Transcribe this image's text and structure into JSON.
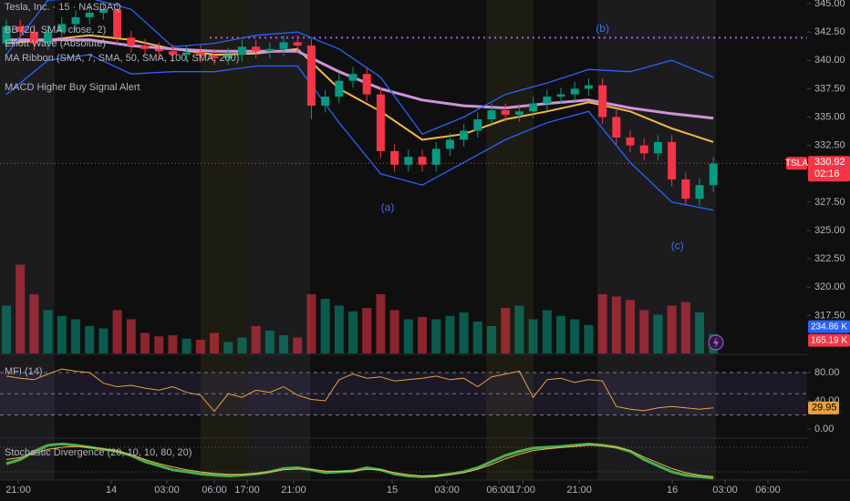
{
  "chart_data": [
    {
      "type": "candlestick",
      "title": "Tesla, Inc. · 15 · NASDAQ",
      "indicators": [
        "BB (20, SMA, close, 2)",
        "Elliott Wave (Absolute)",
        "MA Ribbon (SMA, 7, SMA, 50, SMA, 100, SMA, 200)",
        "MACD Higher Buy Signal Alert"
      ],
      "up_color": "#089981",
      "down_color": "#f23645",
      "x": [
        0,
        1,
        2,
        3,
        4,
        5,
        6,
        7,
        8,
        9,
        10,
        11,
        12,
        13,
        14,
        15,
        16,
        17,
        18,
        19,
        20,
        21,
        22,
        23,
        24,
        25,
        26,
        27,
        28,
        29,
        30,
        31,
        32,
        33,
        34,
        35,
        36,
        37,
        38,
        39,
        40,
        41,
        42,
        43,
        44,
        45,
        46,
        47,
        48,
        49,
        50,
        51
      ],
      "open": [
        341.5,
        343.0,
        342.5,
        341.5,
        342.5,
        343.2,
        343.8,
        344.2,
        344.5,
        342.0,
        341.3,
        341.0,
        340.8,
        340.5,
        340.7,
        340.4,
        340.2,
        340.5,
        341.2,
        340.8,
        341.0,
        341.6,
        341.3,
        336.0,
        336.8,
        338.2,
        338.8,
        337.0,
        332.0,
        330.8,
        331.5,
        330.8,
        332.2,
        333.0,
        333.8,
        334.8,
        335.6,
        335.2,
        335.5,
        336.2,
        336.8,
        337.0,
        337.5,
        337.8,
        335.0,
        333.2,
        332.5,
        331.8,
        332.8,
        329.5,
        327.8,
        329.0
      ],
      "high": [
        343.6,
        343.6,
        343.1,
        343.1,
        343.8,
        344.4,
        344.8,
        345.1,
        345.1,
        342.6,
        341.9,
        341.6,
        341.4,
        341.3,
        341.3,
        341.0,
        341.1,
        341.8,
        341.8,
        341.6,
        342.2,
        342.2,
        341.9,
        337.4,
        338.8,
        339.4,
        339.4,
        337.6,
        332.6,
        332.1,
        332.1,
        332.8,
        333.6,
        334.4,
        335.4,
        336.2,
        336.2,
        336.1,
        336.8,
        337.4,
        337.6,
        338.1,
        338.4,
        338.4,
        335.6,
        333.8,
        333.1,
        333.4,
        333.4,
        330.1,
        329.6,
        331.5
      ],
      "low": [
        340.9,
        341.9,
        340.9,
        340.9,
        341.9,
        342.6,
        343.2,
        343.6,
        341.4,
        340.7,
        340.4,
        340.2,
        339.9,
        339.9,
        339.8,
        339.6,
        339.6,
        339.9,
        340.2,
        340.2,
        340.4,
        340.7,
        334.8,
        335.4,
        336.2,
        337.6,
        336.4,
        331.4,
        330.2,
        330.2,
        330.2,
        330.2,
        331.6,
        332.4,
        333.2,
        334.2,
        334.6,
        334.6,
        334.9,
        335.6,
        336.2,
        336.4,
        336.9,
        334.4,
        332.6,
        331.9,
        331.2,
        331.2,
        328.9,
        327.2,
        327.2,
        328.4
      ],
      "close": [
        343.0,
        342.5,
        341.5,
        342.5,
        343.2,
        343.8,
        344.2,
        344.5,
        342.0,
        341.3,
        341.0,
        340.8,
        340.5,
        340.7,
        340.4,
        340.2,
        340.5,
        341.2,
        340.8,
        341.0,
        341.6,
        341.3,
        336.0,
        336.8,
        338.2,
        338.8,
        337.0,
        332.0,
        330.8,
        331.5,
        330.8,
        332.2,
        333.0,
        333.8,
        334.8,
        335.6,
        335.2,
        335.5,
        336.2,
        336.8,
        337.0,
        337.5,
        337.8,
        335.0,
        333.2,
        332.5,
        331.8,
        332.8,
        329.5,
        327.8,
        329.0,
        330.9
      ],
      "overlays": [
        {
          "color": "#f5b942",
          "x": [
            0,
            3,
            6,
            9,
            12,
            15,
            18,
            21,
            24,
            27,
            30,
            33,
            36,
            39,
            42,
            45,
            48,
            51
          ],
          "values": [
            341.5,
            341.8,
            342.2,
            341.8,
            341.0,
            340.5,
            340.6,
            341.0,
            337.5,
            335.5,
            333.0,
            333.5,
            334.8,
            335.5,
            336.3,
            335.5,
            334.0,
            332.8
          ]
        },
        {
          "color": "#ce93d8",
          "x": [
            0,
            3,
            6,
            9,
            12,
            15,
            18,
            21,
            24,
            27,
            30,
            33,
            36,
            39,
            42,
            45,
            48,
            51
          ],
          "values": [
            341.8,
            341.8,
            341.8,
            341.3,
            341.0,
            340.8,
            340.8,
            340.8,
            339.0,
            337.5,
            336.5,
            336.0,
            335.8,
            336.2,
            336.5,
            335.8,
            335.3,
            334.9
          ]
        },
        {
          "color": "#2962ff",
          "x": [
            0,
            3,
            6,
            9,
            12,
            15,
            18,
            21,
            24,
            27,
            30,
            33,
            36,
            39,
            42,
            45,
            48,
            51
          ],
          "values": [
            340.5,
            345.3,
            345.5,
            344.5,
            341.2,
            341.5,
            342.2,
            342.5,
            341.0,
            338.5,
            333.5,
            335.0,
            337.0,
            338.0,
            339.2,
            339.0,
            340.0,
            338.5
          ]
        },
        {
          "color": "#2962ff",
          "x": [
            0,
            3,
            6,
            9,
            12,
            15,
            18,
            21,
            24,
            27,
            30,
            33,
            36,
            39,
            42,
            45,
            48,
            51
          ],
          "values": [
            337.0,
            340.0,
            340.5,
            338.8,
            339.0,
            339.0,
            339.5,
            339.5,
            334.5,
            330.0,
            329.0,
            331.0,
            333.0,
            334.5,
            335.5,
            331.0,
            327.5,
            326.8
          ]
        }
      ],
      "annotations": [
        {
          "text": "(a)",
          "x": 27.5,
          "y": 327.0
        },
        {
          "text": "(b)",
          "x": 43.0,
          "y": 342.75
        },
        {
          "text": "(c)",
          "x": 48.4,
          "y": 323.6
        }
      ],
      "hline": {
        "value": 342,
        "color": "#b94cff"
      },
      "last_price": {
        "value": 330.92,
        "label": "330.92",
        "symbol": "TSLA",
        "countdown": "02:16"
      },
      "xlim": [
        -0.46,
        57.76
      ],
      "ylim": [
        314.16,
        345.32
      ],
      "yticks": [
        {
          "value": 317.5,
          "label": "317.50"
        },
        {
          "value": 320,
          "label": "320.00"
        },
        {
          "value": 322.5,
          "label": "322.50"
        },
        {
          "value": 325,
          "label": "325.00"
        },
        {
          "value": 327.5,
          "label": "327.50"
        },
        {
          "value": 330,
          "label": "330.00"
        },
        {
          "value": 332.5,
          "label": "332.50"
        },
        {
          "value": 335,
          "label": "335.00"
        },
        {
          "value": 337.5,
          "label": "337.50"
        },
        {
          "value": 340,
          "label": "340.00"
        },
        {
          "value": 342.5,
          "label": "342.50"
        },
        {
          "value": 345,
          "label": "345.00"
        }
      ]
    },
    {
      "type": "bar",
      "values": [
        420,
        780,
        520,
        380,
        330,
        300,
        240,
        220,
        380,
        300,
        180,
        150,
        160,
        130,
        120,
        180,
        100,
        140,
        240,
        200,
        160,
        140,
        520,
        480,
        420,
        370,
        400,
        520,
        380,
        300,
        320,
        300,
        330,
        360,
        280,
        240,
        400,
        420,
        300,
        380,
        330,
        300,
        250,
        520,
        500,
        470,
        380,
        340,
        420,
        450,
        360,
        170
      ],
      "ylim": [
        0,
        800
      ],
      "markers": [
        {
          "value": 234.86,
          "label": "234.86 K",
          "color": "#2962ff"
        },
        {
          "value": 165.19,
          "label": "165.19 K",
          "color": "#f23645"
        }
      ]
    },
    {
      "type": "line",
      "title": "MFI (14)",
      "color": "#e9a23b",
      "values": [
        75,
        72,
        70,
        78,
        85,
        82,
        80,
        65,
        60,
        62,
        58,
        55,
        60,
        52,
        48,
        25,
        50,
        45,
        55,
        52,
        60,
        48,
        42,
        40,
        70,
        78,
        72,
        74,
        68,
        70,
        72,
        75,
        70,
        72,
        60,
        74,
        78,
        82,
        45,
        70,
        72,
        66,
        70,
        68,
        32,
        28,
        26,
        30,
        32,
        30,
        28,
        29.95
      ],
      "ylim": [
        -11.6,
        102
      ],
      "yticks": [
        {
          "value": 0,
          "label": "0.00"
        },
        {
          "value": 40,
          "label": "40.00"
        },
        {
          "value": 80,
          "label": "80.00"
        }
      ],
      "bands": [
        20,
        50,
        80
      ],
      "last": {
        "value": 29.95,
        "label": "29.95"
      }
    },
    {
      "type": "line",
      "title": "Stochastic Divergence (20, 10, 10, 80, 20)",
      "series": [
        {
          "color": "#4caf50",
          "values": [
            40,
            50,
            70,
            85,
            88,
            85,
            80,
            75,
            70,
            60,
            45,
            35,
            25,
            20,
            15,
            12,
            10,
            12,
            15,
            20,
            28,
            30,
            25,
            18,
            20,
            22,
            30,
            25,
            15,
            10,
            8,
            10,
            15,
            20,
            30,
            45,
            60,
            70,
            78,
            80,
            82,
            85,
            88,
            85,
            80,
            70,
            50,
            35,
            20,
            12,
            8,
            5
          ]
        },
        {
          "color": "#f5b942",
          "values": [
            50,
            55,
            65,
            75,
            80,
            82,
            80,
            76,
            70,
            62,
            50,
            40,
            32,
            25,
            20,
            16,
            14,
            14,
            16,
            20,
            25,
            27,
            26,
            22,
            21,
            22,
            26,
            25,
            18,
            13,
            10,
            10,
            13,
            18,
            26,
            38,
            52,
            63,
            72,
            76,
            79,
            82,
            85,
            84,
            80,
            72,
            56,
            42,
            28,
            18,
            12,
            8
          ]
        }
      ],
      "levels": [
        80,
        20
      ],
      "ylim": [
        0,
        100
      ],
      "xlim": [
        -0.46,
        57.76
      ],
      "xticks": [
        {
          "value": 0.86,
          "label": "21:00"
        },
        {
          "value": 7.57,
          "label": "14"
        },
        {
          "value": 11.58,
          "label": "03:00"
        },
        {
          "value": 15.0,
          "label": "06:00"
        },
        {
          "value": 17.37,
          "label": "17:00"
        },
        {
          "value": 20.72,
          "label": "21:00"
        },
        {
          "value": 27.83,
          "label": "15"
        },
        {
          "value": 31.78,
          "label": "03:00"
        },
        {
          "value": 35.53,
          "label": "06:00"
        },
        {
          "value": 37.24,
          "label": "17:00"
        },
        {
          "value": 41.32,
          "label": "21:00"
        },
        {
          "value": 48.03,
          "label": "16"
        },
        {
          "value": 51.84,
          "label": "03:00"
        },
        {
          "value": 54.93,
          "label": "06:00"
        }
      ]
    }
  ]
}
